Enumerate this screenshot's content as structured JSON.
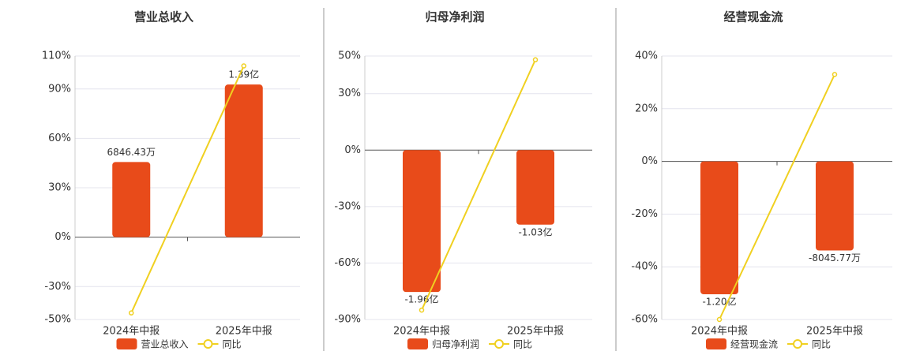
{
  "chart_data": [
    {
      "type": "bar",
      "title": "营业总收入",
      "categories": [
        "2024年中报",
        "2025年中报"
      ],
      "ylim": [
        -50,
        110
      ],
      "yticks": [
        {
          "value": -50,
          "label": "-50%"
        },
        {
          "value": -30,
          "label": "-30%"
        },
        {
          "value": 0,
          "label": "0%"
        },
        {
          "value": 30,
          "label": "30%"
        },
        {
          "value": 60,
          "label": "60%"
        },
        {
          "value": 90,
          "label": "90%"
        },
        {
          "value": 110,
          "label": "110%"
        }
      ],
      "y2lim": [
        -75000000,
        165000000
      ],
      "grid": true,
      "series": [
        {
          "name": "营业总收入",
          "type": "bar",
          "axis": "y2",
          "color": "#e84b1a",
          "values": [
            68464300,
            139000000
          ],
          "value_labels": [
            "6846.43万",
            "1.39亿"
          ]
        },
        {
          "name": "同比",
          "type": "line",
          "color": "#f0d020",
          "values": [
            -46,
            104
          ]
        }
      ]
    },
    {
      "type": "bar",
      "title": "归母净利润",
      "categories": [
        "2024年中报",
        "2025年中报"
      ],
      "ylim": [
        -90,
        50
      ],
      "yticks": [
        {
          "value": -90,
          "label": "-90%"
        },
        {
          "value": -60,
          "label": "-60%"
        },
        {
          "value": -30,
          "label": "-30%"
        },
        {
          "value": 0,
          "label": "0%"
        },
        {
          "value": 30,
          "label": "30%"
        },
        {
          "value": 50,
          "label": "50%"
        }
      ],
      "y2lim": [
        -234000000,
        130000000
      ],
      "grid": true,
      "series": [
        {
          "name": "归母净利润",
          "type": "bar",
          "axis": "y2",
          "color": "#e84b1a",
          "values": [
            -196000000,
            -103000000
          ],
          "value_labels": [
            "-1.96亿",
            "-1.03亿"
          ]
        },
        {
          "name": "同比",
          "type": "line",
          "color": "#f0d020",
          "values": [
            -85,
            48
          ]
        }
      ]
    },
    {
      "type": "bar",
      "title": "经营现金流",
      "categories": [
        "2024年中报",
        "2025年中报"
      ],
      "ylim": [
        -60,
        40
      ],
      "yticks": [
        {
          "value": -60,
          "label": "-60%"
        },
        {
          "value": -40,
          "label": "-40%"
        },
        {
          "value": -20,
          "label": "-20%"
        },
        {
          "value": 0,
          "label": "0%"
        },
        {
          "value": 20,
          "label": "20%"
        },
        {
          "value": 40,
          "label": "40%"
        }
      ],
      "y2lim": [
        -142800000,
        95200000
      ],
      "grid": true,
      "series": [
        {
          "name": "经营现金流",
          "type": "bar",
          "axis": "y2",
          "color": "#e84b1a",
          "values": [
            -120000000,
            -80457700
          ],
          "value_labels": [
            "-1.20亿",
            "-8045.77万"
          ]
        },
        {
          "name": "同比",
          "type": "line",
          "color": "#f0d020",
          "values": [
            -60,
            33
          ]
        }
      ]
    }
  ]
}
